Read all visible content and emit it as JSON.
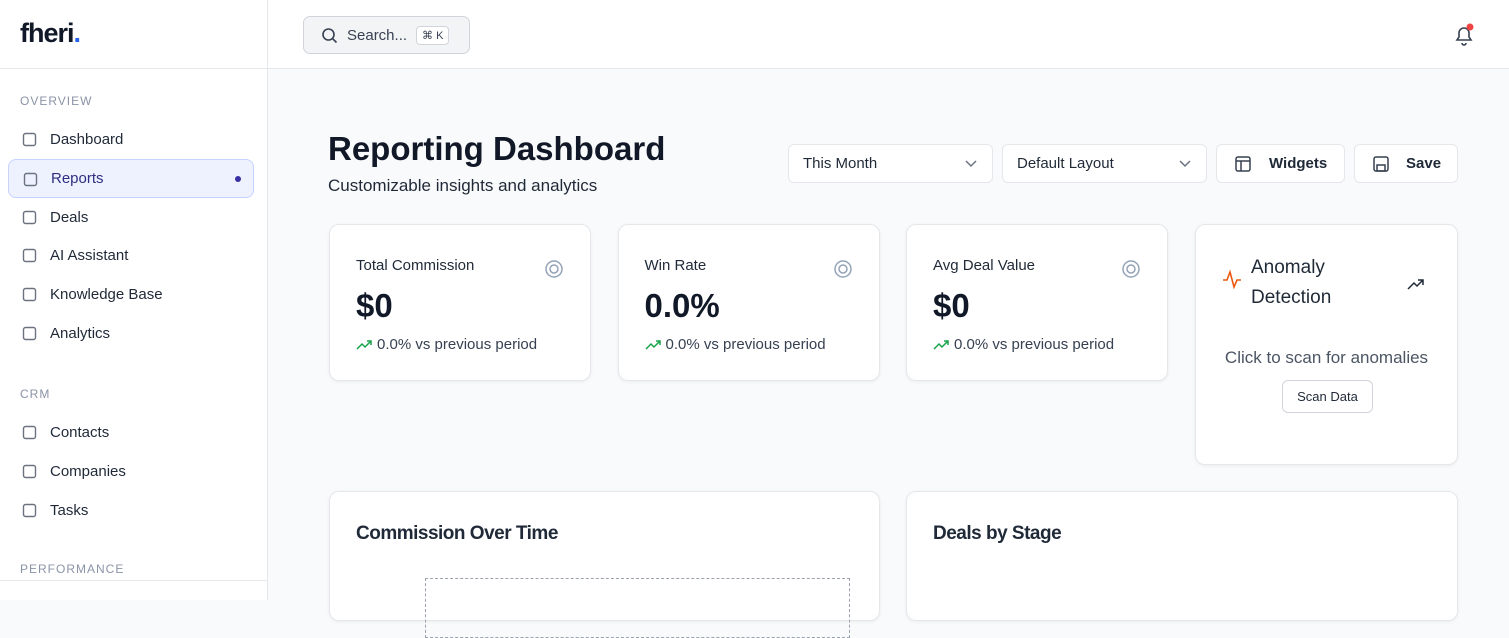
{
  "sidebar": {
    "logo": "fheri",
    "logo_dot": ".",
    "sections": [
      {
        "title": "OVERVIEW",
        "items": [
          "Dashboard",
          "Reports",
          "Deals",
          "AI Assistant",
          "Knowledge Base",
          "Analytics"
        ]
      },
      {
        "title": "CRM",
        "items": [
          "Contacts",
          "Companies",
          "Tasks"
        ]
      },
      {
        "title": "PERFORMANCE",
        "items": []
      }
    ]
  },
  "topbar": {
    "search": "Search...",
    "shortcut": "⌘ K"
  },
  "header": {
    "title": "Reporting Dashboard",
    "subtitle": "Customizable insights and analytics",
    "period": "This Month",
    "layout": "Default Layout",
    "widgets": "Widgets",
    "save": "Save"
  },
  "cards": [
    {
      "label": "Total Commission",
      "value": "$0",
      "change": "0.0% vs previous period"
    },
    {
      "label": "Win Rate",
      "value": "0.0%",
      "change": "0.0% vs previous period"
    },
    {
      "label": "Avg Deal Value",
      "value": "$0",
      "change": "0.0% vs previous period"
    }
  ],
  "anomaly": {
    "title": "Anomaly Detection",
    "text": "Click to scan for anomalies",
    "button": "Scan Data"
  },
  "panels": [
    "Commission Over Time",
    "Deals by Stage"
  ]
}
